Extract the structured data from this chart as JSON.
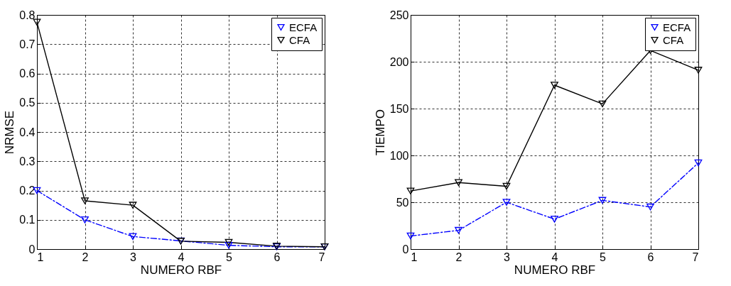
{
  "chart_data": [
    {
      "type": "line",
      "xlabel": "NUMERO RBF",
      "ylabel": "NRMSE",
      "x": [
        1,
        2,
        3,
        4,
        5,
        6,
        7
      ],
      "xlim": [
        1,
        7
      ],
      "xticks": [
        1,
        2,
        3,
        4,
        5,
        6,
        7
      ],
      "ylim": [
        0,
        0.8
      ],
      "yticks": [
        0,
        0.1,
        0.2,
        0.3,
        0.4,
        0.5,
        0.6,
        0.7,
        0.8
      ],
      "grid": true,
      "legend": "top right",
      "marker": "triangle",
      "series": [
        {
          "name": "ECFA",
          "color": "#0000ff",
          "line_style": "dashed",
          "values": [
            0.2,
            0.1,
            0.043,
            0.028,
            0.013,
            0.008,
            0.008
          ]
        },
        {
          "name": "CFA",
          "color": "#000000",
          "line_style": "solid",
          "values": [
            0.775,
            0.165,
            0.15,
            0.027,
            0.023,
            0.01,
            0.008
          ]
        }
      ]
    },
    {
      "type": "line",
      "xlabel": "NUMERO RBF",
      "ylabel": "TIEMPO",
      "x": [
        1,
        2,
        3,
        4,
        5,
        6,
        7
      ],
      "xlim": [
        1,
        7
      ],
      "xticks": [
        1,
        2,
        3,
        4,
        5,
        6,
        7
      ],
      "ylim": [
        0,
        250
      ],
      "yticks": [
        0,
        50,
        100,
        150,
        200,
        250
      ],
      "grid": true,
      "legend": "top right",
      "marker": "triangle",
      "series": [
        {
          "name": "ECFA",
          "color": "#0000ff",
          "line_style": "dashed",
          "values": [
            14,
            20,
            50,
            32,
            52,
            45,
            92
          ]
        },
        {
          "name": "CFA",
          "color": "#000000",
          "line_style": "solid",
          "values": [
            62,
            71,
            67,
            175,
            155,
            212,
            191
          ]
        }
      ]
    }
  ]
}
